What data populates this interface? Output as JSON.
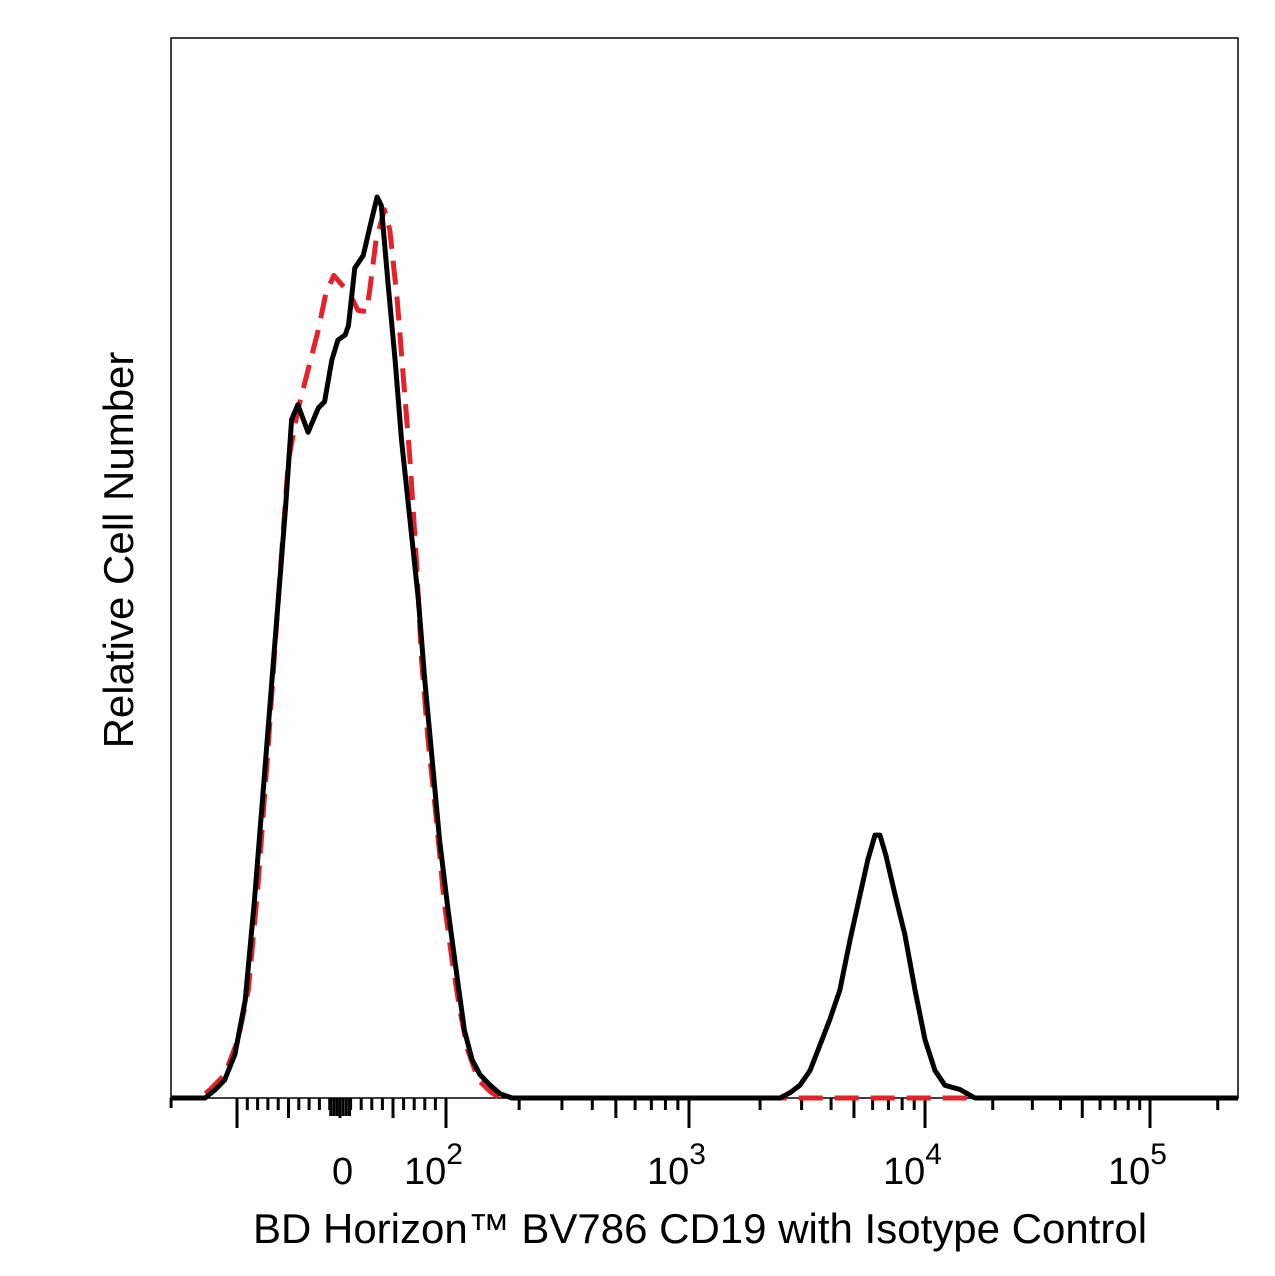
{
  "chart_data": {
    "type": "line",
    "title": "",
    "xlabel": "BD Horizon™ BV786 CD19 with Isotype Control",
    "ylabel": "Relative Cell Number",
    "x_scale": "biexponential",
    "xlim": [
      -164,
      246000
    ],
    "ylim": [
      0,
      100
    ],
    "grid": false,
    "legend": "none",
    "x_tick_labels": [
      {
        "value": 0,
        "base": "0",
        "exp": ""
      },
      {
        "value": 100,
        "base": "10",
        "exp": "2"
      },
      {
        "value": 1000,
        "base": "10",
        "exp": "3"
      },
      {
        "value": 10000,
        "base": "10",
        "exp": "4"
      },
      {
        "value": 100000,
        "base": "10",
        "exp": "5"
      }
    ],
    "series": [
      {
        "style": "solid",
        "color": "#000000",
        "x": [
          -164,
          -131,
          -121,
          -112,
          -102,
          -92,
          -83,
          -73,
          -63,
          -53,
          -47,
          -41,
          -31,
          -21,
          -15,
          -8,
          -2,
          5,
          8,
          14,
          22,
          28,
          35,
          39,
          45,
          52,
          58,
          66,
          74,
          80,
          87,
          94,
          102,
          110,
          119,
          128,
          138,
          152,
          167,
          187,
          2430,
          2680,
          2950,
          3260,
          3590,
          3950,
          4360,
          4810,
          5310,
          5730,
          6140,
          6440,
          6830,
          7460,
          8220,
          9070,
          10000,
          11070,
          12270,
          14310,
          16670,
          246000
        ],
        "y": [
          0,
          0,
          0.8,
          1.7,
          4.1,
          9.2,
          18.7,
          30.9,
          43.2,
          55.5,
          64,
          65.4,
          62.8,
          65.1,
          65.7,
          69.6,
          71.5,
          72,
          72.9,
          78.3,
          79.5,
          82.1,
          85,
          84.2,
          77.2,
          69.6,
          62.1,
          54.5,
          47,
          39.4,
          31.9,
          24.3,
          17.7,
          12.1,
          6.4,
          3.6,
          2.2,
          1.2,
          0.4,
          0,
          0,
          0.5,
          1.2,
          2.6,
          5,
          7.4,
          10.2,
          14.9,
          19.2,
          22.5,
          24.8,
          24.8,
          22.9,
          19.2,
          15.4,
          10.2,
          5.5,
          2.6,
          1.2,
          0.8,
          0,
          0
        ]
      },
      {
        "style": "dashed",
        "color": "#e8202a",
        "x": [
          -164,
          -136,
          -126,
          -112,
          -99,
          -89,
          -80,
          -70,
          -60,
          -50,
          -41,
          -31,
          -21,
          -14,
          -6,
          2,
          9,
          17,
          25,
          28,
          34,
          42,
          47,
          54,
          60,
          66,
          72,
          77,
          83,
          91,
          98,
          106,
          114,
          123,
          136,
          152,
          167,
          246000
        ],
        "y": [
          0,
          0,
          0.8,
          2.2,
          5.5,
          10.2,
          19.6,
          32.8,
          47,
          60.2,
          64.9,
          68.7,
          72.5,
          75.8,
          77.6,
          76.7,
          75.9,
          74.3,
          74.2,
          76.2,
          80.9,
          83.8,
          81.9,
          75.3,
          67.7,
          60.2,
          50.8,
          41.3,
          33.8,
          26.2,
          18.7,
          13,
          8.3,
          4.5,
          1.7,
          0.6,
          0,
          0
        ]
      }
    ]
  }
}
